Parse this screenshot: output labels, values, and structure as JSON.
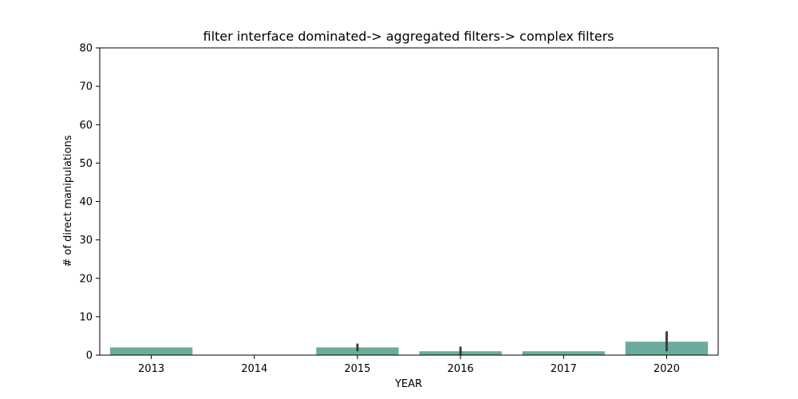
{
  "chart_data": {
    "type": "bar",
    "title": "filter interface dominated-> aggregated filters-> complex filters",
    "xlabel": "YEAR",
    "ylabel": "# of direct manipulations",
    "categories": [
      "2013",
      "2014",
      "2015",
      "2016",
      "2017",
      "2020"
    ],
    "values": [
      2,
      0,
      2,
      1,
      1,
      3.5
    ],
    "error_bars": [
      null,
      null,
      [
        1,
        3
      ],
      [
        0,
        2.2
      ],
      null,
      [
        1,
        6.2
      ]
    ],
    "ylim": [
      0,
      80
    ],
    "yticks": [
      0,
      10,
      20,
      30,
      40,
      50,
      60,
      70,
      80
    ],
    "bar_color": "#6aab9c",
    "error_color": "#3d3d3d",
    "grid": false,
    "legend": "none"
  }
}
